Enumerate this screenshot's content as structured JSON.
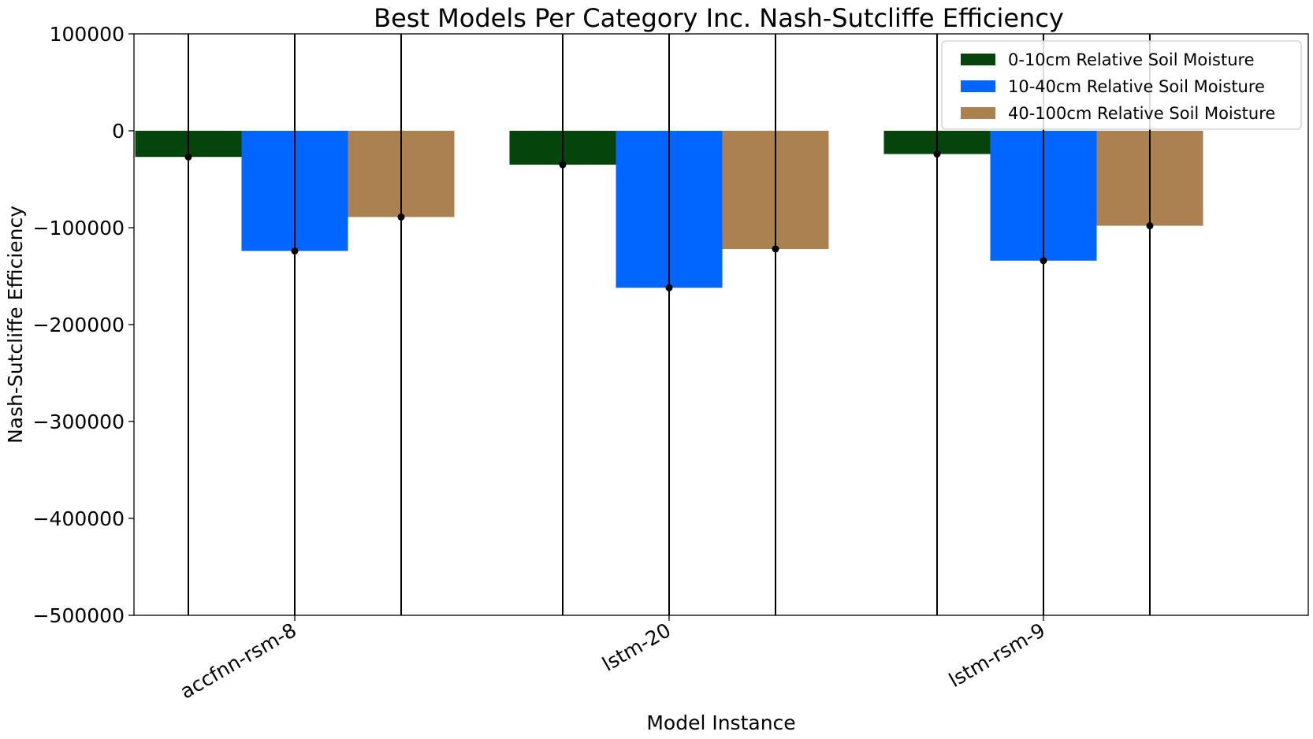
{
  "chart_data": {
    "type": "bar",
    "title": "Best Models Per Category Inc. Nash-Sutcliffe Efficiency",
    "xlabel": "Model Instance",
    "ylabel": "Nash-Sutcliffe Efficiency",
    "categories": [
      "accfnn-rsm-8",
      "lstm-20",
      "lstm-rsm-9"
    ],
    "ylim": [
      -500000,
      100000
    ],
    "yticks": [
      100000,
      0,
      -100000,
      -200000,
      -300000,
      -400000,
      -500000
    ],
    "ytick_labels": [
      "100000",
      "0",
      "−100000",
      "−200000",
      "−300000",
      "−400000",
      "−500000"
    ],
    "grid": false,
    "legend_position": "top-right",
    "series": [
      {
        "name": "0-10cm Relative Soil Moisture",
        "color": "#05450b",
        "values": [
          -27000,
          -35000,
          -24000
        ]
      },
      {
        "name": "10-40cm Relative Soil Moisture",
        "color": "#0066ff",
        "values": [
          -124000,
          -162000,
          -134000
        ]
      },
      {
        "name": "40-100cm Relative Soil Moisture",
        "color": "#ac8150",
        "values": [
          -89000,
          -122000,
          -98000
        ]
      }
    ],
    "error_bars": {
      "color": "#000000",
      "note": "error bars extend beyond the visible axis range in both directions"
    }
  }
}
